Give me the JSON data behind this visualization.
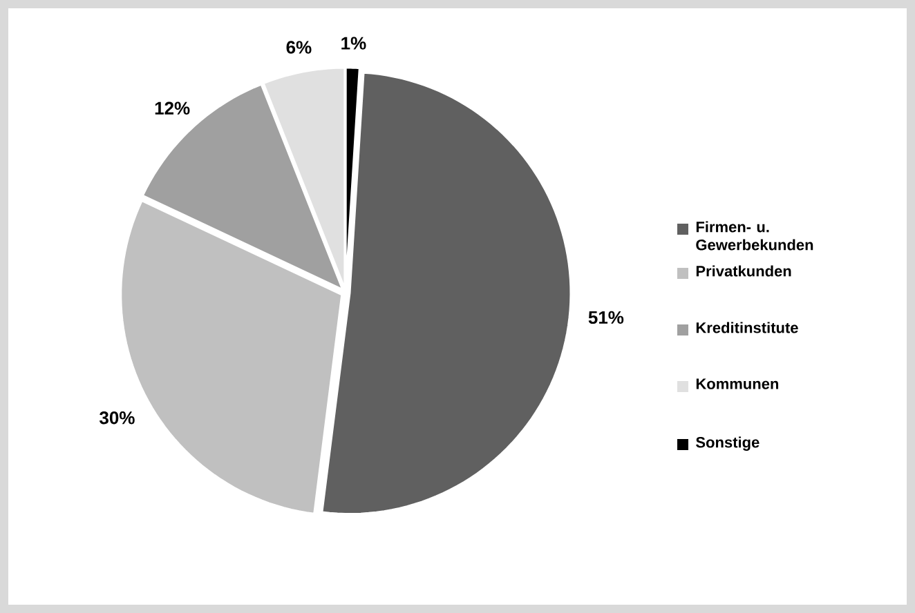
{
  "chart_data": {
    "type": "pie",
    "categories": [
      "Firmen- u. Gewerbekunden",
      "Privatkunden",
      "Kreditinstitute",
      "Kommunen",
      "Sonstige"
    ],
    "values": [
      51,
      30,
      12,
      6,
      1
    ],
    "colors": [
      "#606060",
      "#c0c0c0",
      "#a0a0a0",
      "#e0e0e0",
      "#000000"
    ],
    "value_labels": [
      "51%",
      "30%",
      "12%",
      "6%",
      "1%"
    ],
    "legend": "right"
  }
}
